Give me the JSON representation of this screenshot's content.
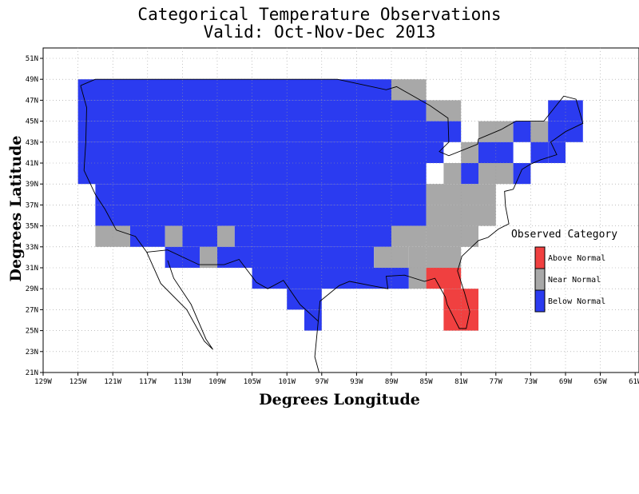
{
  "chart_data": {
    "type": "map",
    "title": "Categorical Temperature Observations",
    "subtitle": "Valid: Oct-Nov-Dec 2013",
    "xlabel": "Degrees Longitude",
    "ylabel": "Degrees Latitude",
    "xlim": [
      -129,
      -61
    ],
    "ylim": [
      21,
      52
    ],
    "x_ticks": [
      "129W",
      "125W",
      "121W",
      "117W",
      "113W",
      "109W",
      "105W",
      "101W",
      "97W",
      "93W",
      "89W",
      "85W",
      "81W",
      "77W",
      "73W",
      "69W",
      "65W",
      "61W"
    ],
    "y_ticks": [
      "21N",
      "23N",
      "25N",
      "27N",
      "29N",
      "31N",
      "33N",
      "35N",
      "37N",
      "39N",
      "41N",
      "43N",
      "45N",
      "47N",
      "49N",
      "51N"
    ],
    "grid": true,
    "legend_title": "Observed Category",
    "legend_placement": "right",
    "categories": [
      {
        "key": "A",
        "label": "Above Normal",
        "color": "#f04040"
      },
      {
        "key": "N",
        "label": "Near Normal",
        "color": "#a8a8a8"
      },
      {
        "key": "B",
        "label": "Below Normal",
        "color": "#2b3bf0"
      }
    ],
    "cell_size_deg": 2,
    "rows": [
      {
        "lat_top": 49,
        "cells": [
          [
            -125,
            -89,
            "B"
          ],
          [
            -89,
            -85,
            "N"
          ]
        ]
      },
      {
        "lat_top": 47,
        "cells": [
          [
            -125,
            -85,
            "B"
          ],
          [
            -85,
            -81,
            "N"
          ],
          [
            -71,
            -67,
            "B"
          ]
        ]
      },
      {
        "lat_top": 45,
        "cells": [
          [
            -125,
            -81,
            "B"
          ],
          [
            -79,
            -75,
            "N"
          ],
          [
            -75,
            -71,
            "B"
          ],
          [
            -73,
            -71,
            "N"
          ],
          [
            -71,
            -67,
            "B"
          ]
        ]
      },
      {
        "lat_top": 43,
        "cells": [
          [
            -125,
            -83,
            "B"
          ],
          [
            -81,
            -79,
            "N"
          ],
          [
            -79,
            -75,
            "B"
          ],
          [
            -73,
            -71,
            "B"
          ],
          [
            -71,
            -69,
            "B"
          ]
        ]
      },
      {
        "lat_top": 41,
        "cells": [
          [
            -125,
            -85,
            "B"
          ],
          [
            -83,
            -81,
            "N"
          ],
          [
            -81,
            -79,
            "B"
          ],
          [
            -79,
            -75,
            "N"
          ],
          [
            -75,
            -73,
            "B"
          ]
        ]
      },
      {
        "lat_top": 39,
        "cells": [
          [
            -123,
            -85,
            "B"
          ],
          [
            -85,
            -77,
            "N"
          ]
        ]
      },
      {
        "lat_top": 37,
        "cells": [
          [
            -123,
            -85,
            "B"
          ],
          [
            -85,
            -77,
            "N"
          ]
        ]
      },
      {
        "lat_top": 35,
        "cells": [
          [
            -123,
            -119,
            "N"
          ],
          [
            -119,
            -115,
            "B"
          ],
          [
            -115,
            -113,
            "N"
          ],
          [
            -113,
            -109,
            "B"
          ],
          [
            -109,
            -107,
            "N"
          ],
          [
            -107,
            -89,
            "B"
          ],
          [
            -89,
            -85,
            "N"
          ],
          [
            -85,
            -79,
            "N"
          ]
        ]
      },
      {
        "lat_top": 33,
        "cells": [
          [
            -115,
            -111,
            "B"
          ],
          [
            -111,
            -109,
            "N"
          ],
          [
            -109,
            -91,
            "B"
          ],
          [
            -91,
            -87,
            "N"
          ],
          [
            -87,
            -85,
            "N"
          ],
          [
            -85,
            -81,
            "N"
          ]
        ]
      },
      {
        "lat_top": 31,
        "cells": [
          [
            -105,
            -89,
            "B"
          ],
          [
            -89,
            -87,
            "B"
          ],
          [
            -87,
            -85,
            "N"
          ],
          [
            -85,
            -81,
            "A"
          ]
        ]
      },
      {
        "lat_top": 29,
        "cells": [
          [
            -101,
            -97,
            "B"
          ],
          [
            -83,
            -79,
            "A"
          ]
        ]
      },
      {
        "lat_top": 27,
        "cells": [
          [
            -99,
            -97,
            "B"
          ],
          [
            -83,
            -79,
            "A"
          ]
        ]
      }
    ]
  }
}
